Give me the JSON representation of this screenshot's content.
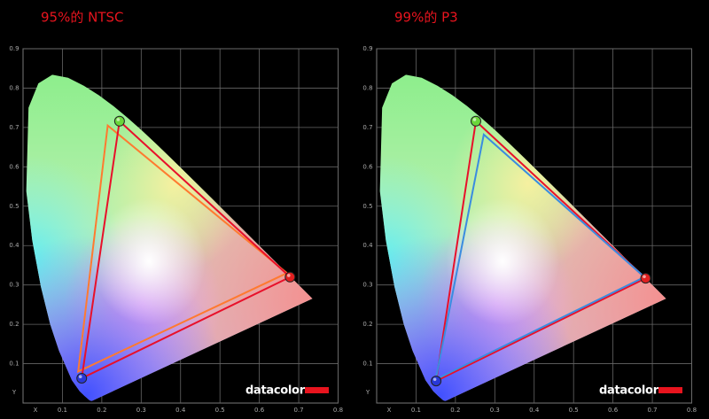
{
  "chart_data": [
    {
      "type": "gamut",
      "title": "95%的 NTSC",
      "x_label": "X",
      "y_label": "Y",
      "brand": "datacolor",
      "xlim": [
        0,
        0.8
      ],
      "ylim": [
        0,
        0.9
      ],
      "xticks": [
        0.1,
        0.2,
        0.3,
        0.4,
        0.5,
        0.6,
        0.7,
        0.8
      ],
      "yticks": [
        0.1,
        0.2,
        0.3,
        0.4,
        0.5,
        0.6,
        0.7,
        0.8,
        0.9
      ],
      "grid": true,
      "series": [
        {
          "color": "#ff7a30",
          "x": [
            0.67,
            0.215,
            0.14
          ],
          "y": [
            0.33,
            0.705,
            0.08
          ]
        },
        {
          "color": "#e8102a",
          "x": [
            0.678,
            0.245,
            0.149
          ],
          "y": [
            0.32,
            0.716,
            0.063
          ],
          "marker_colors": [
            "#e02020",
            "#6ad63a",
            "#2838d8"
          ]
        }
      ]
    },
    {
      "type": "gamut",
      "title": "99%的 P3",
      "x_label": "X",
      "y_label": "Y",
      "brand": "datacolor",
      "xlim": [
        0,
        0.8
      ],
      "ylim": [
        0,
        0.9
      ],
      "xticks": [
        0.1,
        0.2,
        0.3,
        0.4,
        0.5,
        0.6,
        0.7,
        0.8
      ],
      "yticks": [
        0.1,
        0.2,
        0.3,
        0.4,
        0.5,
        0.6,
        0.7,
        0.8,
        0.9
      ],
      "grid": true,
      "series": [
        {
          "color": "#e8102a",
          "x": [
            0.683,
            0.252,
            0.151
          ],
          "y": [
            0.317,
            0.716,
            0.056
          ],
          "marker_colors": [
            "#e02020",
            "#6ad63a",
            "#2838d8"
          ]
        },
        {
          "color": "#3a8ce0",
          "x": [
            0.68,
            0.272,
            0.15
          ],
          "y": [
            0.32,
            0.682,
            0.06
          ]
        }
      ]
    }
  ]
}
